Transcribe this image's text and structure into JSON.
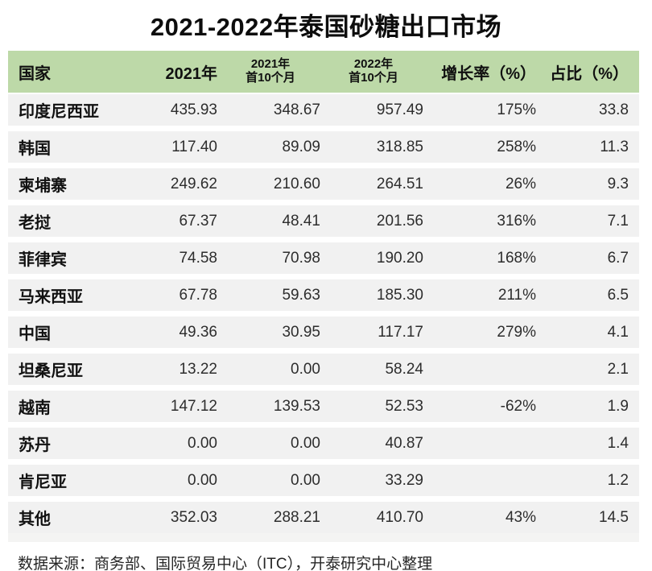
{
  "chart_data": {
    "type": "table",
    "title": "2021-2022年泰国砂糖出口市场",
    "columns": [
      {
        "label": "国家"
      },
      {
        "label": "2021年"
      },
      {
        "label_line1": "2021年",
        "label_line2": "首10个月"
      },
      {
        "label_line1": "2022年",
        "label_line2": "首10个月"
      },
      {
        "label": "增长率（%）"
      },
      {
        "label": "占比（%）"
      }
    ],
    "rows": [
      {
        "cells": [
          "印度尼西亚",
          "435.93",
          "348.67",
          "957.49",
          "175%",
          "33.8"
        ],
        "cell_colors": [
          null,
          null,
          null,
          null,
          null,
          null
        ]
      },
      {
        "cells": [
          "韩国",
          "117.40",
          "89.09",
          "318.85",
          "258%",
          "11.3"
        ],
        "cell_colors": [
          null,
          null,
          null,
          null,
          null,
          null
        ]
      },
      {
        "cells": [
          "柬埔寨",
          "249.62",
          "210.60",
          "264.51",
          "26%",
          "9.3"
        ],
        "cell_colors": [
          null,
          null,
          null,
          null,
          null,
          null
        ]
      },
      {
        "cells": [
          "老挝",
          "67.37",
          "48.41",
          "201.56",
          "316%",
          "7.1"
        ],
        "cell_colors": [
          null,
          null,
          null,
          null,
          null,
          null
        ]
      },
      {
        "cells": [
          "菲律宾",
          "74.58",
          "70.98",
          "190.20",
          "168%",
          "6.7"
        ],
        "cell_colors": [
          null,
          null,
          null,
          null,
          null,
          null
        ]
      },
      {
        "cells": [
          "马来西亚",
          "67.78",
          "59.63",
          "185.30",
          "211%",
          "6.5"
        ],
        "cell_colors": [
          null,
          null,
          null,
          null,
          null,
          null
        ]
      },
      {
        "cells": [
          "中国",
          "49.36",
          "30.95",
          "117.17",
          "279%",
          "4.1"
        ],
        "cell_colors": [
          null,
          null,
          null,
          null,
          null,
          null
        ]
      },
      {
        "cells": [
          "坦桑尼亚",
          "13.22",
          "0.00",
          "58.24",
          "",
          "2.1"
        ],
        "cell_colors": [
          null,
          null,
          null,
          "green",
          null,
          null
        ]
      },
      {
        "cells": [
          "越南",
          "147.12",
          "139.53",
          "52.53",
          "-62%",
          "1.9"
        ],
        "cell_colors": [
          null,
          null,
          null,
          null,
          "red",
          null
        ]
      },
      {
        "cells": [
          "苏丹",
          "0.00",
          "0.00",
          "40.87",
          "",
          "1.4"
        ],
        "cell_colors": [
          null,
          null,
          null,
          "green",
          null,
          null
        ]
      },
      {
        "cells": [
          "肯尼亚",
          "0.00",
          "0.00",
          "33.29",
          "",
          "1.2"
        ],
        "cell_colors": [
          null,
          null,
          null,
          "green",
          null,
          null
        ]
      },
      {
        "cells": [
          "其他",
          "352.03",
          "288.21",
          "410.70",
          "43%",
          "14.5"
        ],
        "cell_colors": [
          null,
          null,
          null,
          null,
          null,
          null
        ]
      }
    ],
    "source": "数据来源：商务部、国际贸易中心（ITC），开泰研究中心整理"
  },
  "colors": {
    "header_green": "#bdd9a8",
    "row_gray": "#f1f1f1",
    "positive_green": "#6fae6e",
    "negative_red": "#d94545"
  }
}
